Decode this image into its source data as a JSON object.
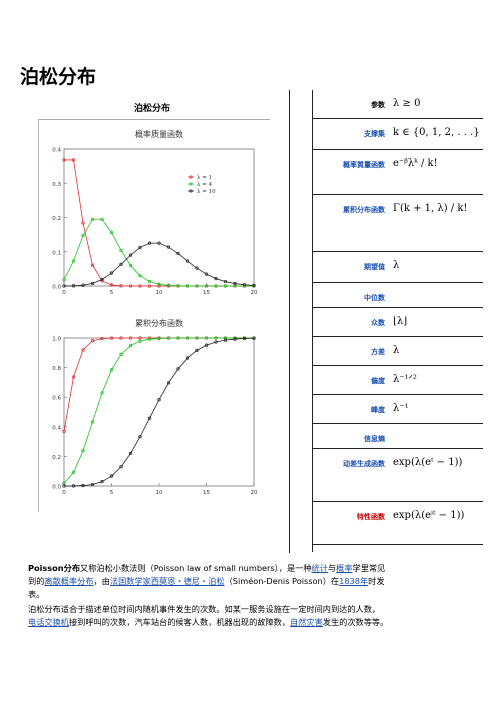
{
  "page": {
    "title": "泊松分布"
  },
  "infobox": {
    "title": "泊松分布",
    "rows": [
      {
        "label": "参数",
        "value": "λ ≥ 0",
        "style": "plain"
      },
      {
        "label": "支撑集",
        "value": "k ∈ {0, 1, 2, . . .}",
        "style": "link"
      },
      {
        "label": "概率質量函数",
        "value": "e⁻ᵝλᵏ / k!",
        "style": "link"
      },
      {
        "label": "累积分布函数",
        "value": "Γ(k + 1, λ) / k!",
        "style": "link"
      },
      {
        "label": "期望值",
        "value": "λ",
        "style": "link"
      },
      {
        "label": "中位数",
        "value": "",
        "style": "link"
      },
      {
        "label": "众数",
        "value": "⌊λ⌋",
        "style": "link"
      },
      {
        "label": "方差",
        "value": "λ",
        "style": "link"
      },
      {
        "label": "偏度",
        "value": "λ⁻¹ᐟ²",
        "style": "link"
      },
      {
        "label": "峰度",
        "value": "λ⁻¹",
        "style": "link"
      },
      {
        "label": "信息熵",
        "value": "",
        "style": "link"
      },
      {
        "label": "动差生成函数",
        "value": "exp(λ(eᵗ − 1))",
        "style": "link"
      },
      {
        "label": "特性函数",
        "value": "exp(λ(eⁱᵗ − 1))",
        "style": "red"
      }
    ]
  },
  "chart_data": [
    {
      "type": "line",
      "title": "概率质量函数",
      "xlim": [
        0,
        20
      ],
      "ylim": [
        0,
        0.4
      ],
      "xticks": [
        0,
        5,
        10,
        15,
        20
      ],
      "yticks": [
        0.0,
        0.1,
        0.2,
        0.3,
        0.4
      ],
      "legend_position": "center-right",
      "series": [
        {
          "name": "λ = 1",
          "color": "#e03030",
          "x": [
            0,
            1,
            2,
            3,
            4,
            5,
            6,
            7,
            8,
            9,
            10,
            11,
            12,
            13,
            14,
            15,
            16,
            17,
            18,
            19,
            20
          ],
          "values": [
            0.368,
            0.368,
            0.184,
            0.061,
            0.015,
            0.003,
            0.0005,
            0.0001,
            0,
            0,
            0,
            0,
            0,
            0,
            0,
            0,
            0,
            0,
            0,
            0,
            0
          ]
        },
        {
          "name": "λ = 4",
          "color": "#20c020",
          "x": [
            0,
            1,
            2,
            3,
            4,
            5,
            6,
            7,
            8,
            9,
            10,
            11,
            12,
            13,
            14,
            15,
            16,
            17,
            18,
            19,
            20
          ],
          "values": [
            0.018,
            0.073,
            0.147,
            0.195,
            0.195,
            0.156,
            0.104,
            0.06,
            0.03,
            0.013,
            0.005,
            0.002,
            0.0006,
            0.0002,
            0,
            0,
            0,
            0,
            0,
            0,
            0
          ]
        },
        {
          "name": "λ = 10",
          "color": "#222222",
          "x": [
            0,
            1,
            2,
            3,
            4,
            5,
            6,
            7,
            8,
            9,
            10,
            11,
            12,
            13,
            14,
            15,
            16,
            17,
            18,
            19,
            20
          ],
          "values": [
            5e-05,
            0.0005,
            0.0023,
            0.0076,
            0.0189,
            0.0378,
            0.0631,
            0.0901,
            0.1126,
            0.1251,
            0.1251,
            0.1137,
            0.0948,
            0.0729,
            0.0521,
            0.0347,
            0.0217,
            0.0128,
            0.0071,
            0.0037,
            0.0019
          ]
        }
      ]
    },
    {
      "type": "line",
      "title": "累积分布函数",
      "xlim": [
        0,
        20
      ],
      "ylim": [
        0,
        1.0
      ],
      "xticks": [
        0,
        5,
        10,
        15,
        20
      ],
      "yticks": [
        0.0,
        0.2,
        0.4,
        0.6,
        0.8,
        1.0
      ],
      "series": [
        {
          "name": "λ = 1",
          "color": "#e03030",
          "x": [
            0,
            1,
            2,
            3,
            4,
            5,
            6,
            7,
            8,
            9,
            10,
            11,
            12,
            13,
            14,
            15,
            16,
            17,
            18,
            19,
            20
          ],
          "values": [
            0.368,
            0.736,
            0.92,
            0.981,
            0.996,
            0.999,
            1,
            1,
            1,
            1,
            1,
            1,
            1,
            1,
            1,
            1,
            1,
            1,
            1,
            1,
            1
          ]
        },
        {
          "name": "λ = 4",
          "color": "#20c020",
          "x": [
            0,
            1,
            2,
            3,
            4,
            5,
            6,
            7,
            8,
            9,
            10,
            11,
            12,
            13,
            14,
            15,
            16,
            17,
            18,
            19,
            20
          ],
          "values": [
            0.018,
            0.092,
            0.238,
            0.433,
            0.629,
            0.785,
            0.889,
            0.949,
            0.979,
            0.992,
            0.997,
            0.999,
            1,
            1,
            1,
            1,
            1,
            1,
            1,
            1,
            1
          ]
        },
        {
          "name": "λ = 10",
          "color": "#222222",
          "x": [
            0,
            1,
            2,
            3,
            4,
            5,
            6,
            7,
            8,
            9,
            10,
            11,
            12,
            13,
            14,
            15,
            16,
            17,
            18,
            19,
            20
          ],
          "values": [
            5e-05,
            0.0005,
            0.0028,
            0.0103,
            0.0293,
            0.0671,
            0.1301,
            0.2202,
            0.3328,
            0.4579,
            0.583,
            0.6968,
            0.7916,
            0.8645,
            0.9165,
            0.9513,
            0.973,
            0.9857,
            0.9928,
            0.9965,
            0.9984
          ]
        }
      ]
    }
  ],
  "intro": {
    "term": "Poisson分布",
    "p1a": "又称泊松小数法则（Poisson law of small numbers），是一种",
    "l_stat": "统计",
    "p1b": "与",
    "l_prob": "概率",
    "p1c": "学里常见",
    "p1d": "到的",
    "l_disc": "离散概率分布",
    "p1e": "，由",
    "l_math": "法国数学家西莫恩・德尼・泊松",
    "p1f": "（Siméon-Denis Poisson）在",
    "l_year": "1838年",
    "p1g": "时发",
    "p1h": "表。"
  },
  "para2": {
    "a": "泊松分布适合于描述单位时间内随机事件发生的次数。如某一服务设施在一定时间内到达的人数，",
    "l_tel": "电话交换机",
    "b": "接到呼叫的次数，汽车站台的候客人数，机器出现的故障数，",
    "l_dis": "自然灾害",
    "c": "发生的次数等等。"
  }
}
